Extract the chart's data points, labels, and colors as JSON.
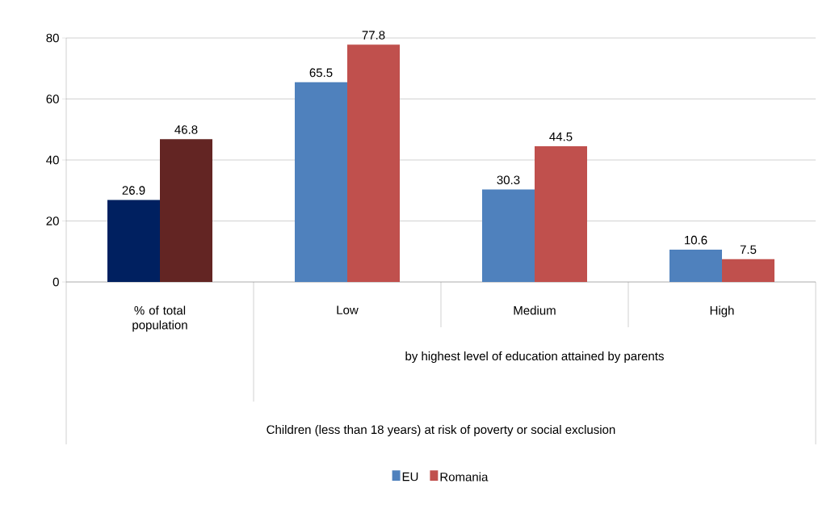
{
  "chart_data": {
    "type": "bar",
    "categories": [
      "% of total population",
      "Low",
      "Medium",
      "High"
    ],
    "series": [
      {
        "name": "EU",
        "color": "#4f81bd",
        "colors": [
          "#002060",
          "#4f81bd",
          "#4f81bd",
          "#4f81bd"
        ],
        "values": [
          26.9,
          65.5,
          30.3,
          10.6
        ]
      },
      {
        "name": "Romania",
        "color": "#c0504d",
        "colors": [
          "#632523",
          "#c0504d",
          "#c0504d",
          "#c0504d"
        ],
        "values": [
          46.8,
          77.8,
          44.5,
          7.5
        ]
      }
    ],
    "ylim": [
      0,
      80
    ],
    "yticks": [
      0,
      20,
      40,
      60,
      80
    ],
    "grid": "y",
    "legend": "bottom",
    "data_labels": true,
    "annotations": [
      "by highest level of education attained by parents",
      "Children (less than 18 years) at risk of poverty or social exclusion"
    ]
  }
}
